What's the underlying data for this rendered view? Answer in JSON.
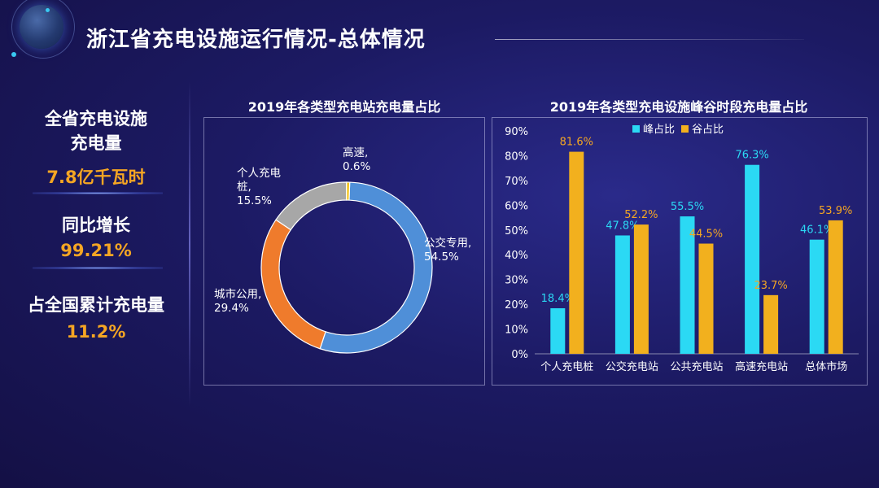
{
  "page": {
    "title": "浙江省充电设施运行情况-总体情况"
  },
  "kpis": [
    {
      "label_lines": [
        "全省充电设施",
        "充电量"
      ],
      "value": "7.8亿千瓦时"
    },
    {
      "label_lines": [
        "同比增长"
      ],
      "value": "99.21%"
    },
    {
      "label_lines": [
        "占全国累计充电量"
      ],
      "value": "11.2%"
    }
  ],
  "colors": {
    "accent": "#f5a623",
    "cyan": "#2bd9f4",
    "orange_bar": "#f2b01e",
    "pie_blue": "#4f8fd8",
    "pie_orange": "#ef7b2c",
    "pie_gray": "#a7a7a7",
    "pie_yellow": "#f2c21b"
  },
  "chart_data": [
    {
      "type": "pie",
      "title": "2019年各类型充电站充电量占比",
      "style": "donut",
      "slices": [
        {
          "name": "公交专用",
          "value": 54.5,
          "label_lines": [
            "公交专用,",
            "54.5%"
          ]
        },
        {
          "name": "城市公用",
          "value": 29.4,
          "label_lines": [
            "城市公用,",
            "29.4%"
          ]
        },
        {
          "name": "个人充电桩",
          "value": 15.5,
          "label_lines": [
            "个人充电",
            "桩,",
            "15.5%"
          ]
        },
        {
          "name": "高速",
          "value": 0.6,
          "label_lines": [
            "高速,",
            "0.6%"
          ]
        }
      ]
    },
    {
      "type": "bar",
      "title": "2019年各类型充电设施峰谷时段充电量占比",
      "categories": [
        "个人充电桩",
        "公交充电站",
        "公共充电站",
        "高速充电站",
        "总体市场"
      ],
      "series": [
        {
          "name": "峰占比",
          "values": [
            18.4,
            47.8,
            55.5,
            76.3,
            46.1
          ]
        },
        {
          "name": "谷占比",
          "values": [
            81.6,
            52.2,
            44.5,
            23.7,
            53.9
          ]
        }
      ],
      "ylim": [
        0,
        90
      ],
      "yticks": [
        "0%",
        "10%",
        "20%",
        "30%",
        "40%",
        "50%",
        "60%",
        "70%",
        "80%",
        "90%"
      ],
      "legend": "top-left",
      "unit": "%"
    }
  ]
}
